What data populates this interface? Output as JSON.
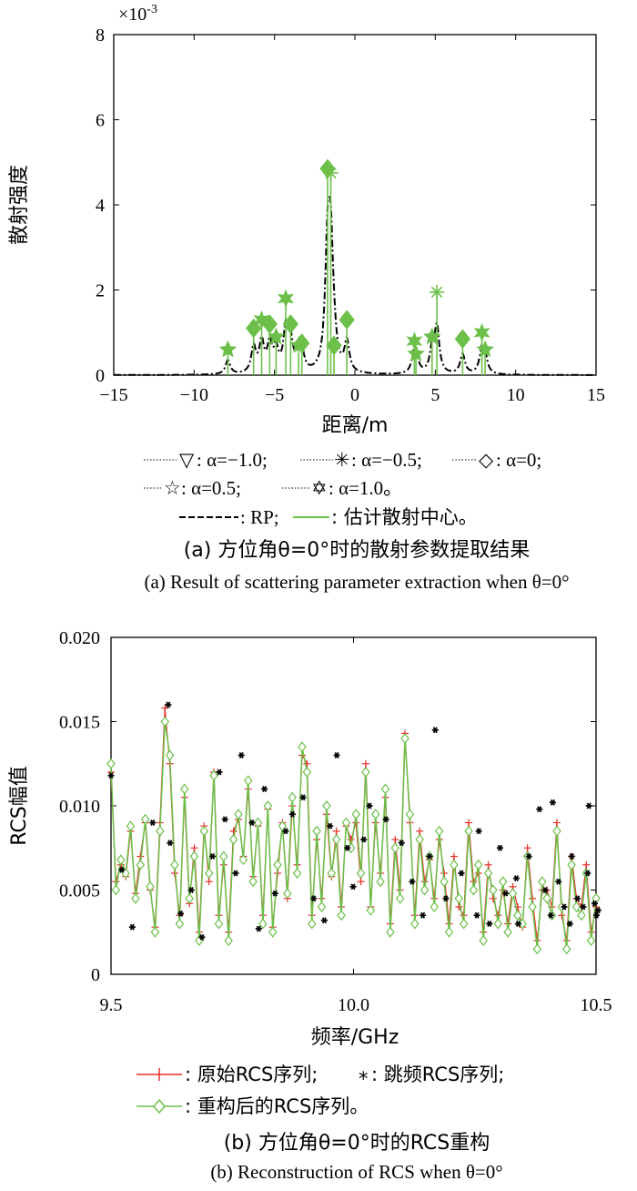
{
  "figure_a": {
    "exponent_label": "×10",
    "exponent_power": "-3",
    "xlabel": "距离/m",
    "ylabel": "散射强度",
    "legend": {
      "row1": [
        {
          "marker": "▽",
          "text": ": α=−1.0;"
        },
        {
          "marker": "✳",
          "text": ": α=−0.5;"
        },
        {
          "marker": "◇",
          "text": ": α=0;"
        }
      ],
      "row2": [
        {
          "marker": "☆",
          "text": ": α=0.5;"
        },
        {
          "marker": "✡",
          "text": ": α=1.0。"
        }
      ],
      "row3": [
        {
          "text": ": RP;"
        },
        {
          "text": ": 估计散射中心。"
        }
      ]
    },
    "caption_cn": "(a) 方位角θ=0°时的散射参数提取结果",
    "caption_en": "(a) Result of scattering parameter extraction when θ=0°"
  },
  "figure_b": {
    "xlabel": "频率/GHz",
    "ylabel": "RCS幅值",
    "legend": {
      "row1": [
        {
          "text": ": 原始RCS序列;"
        },
        {
          "marker": "*",
          "text": ": 跳频RCS序列;"
        }
      ],
      "row2": [
        {
          "text": ": 重构后的RCS序列。"
        }
      ]
    },
    "caption_cn": "(b) 方位角θ=0°时的RCS重构",
    "caption_en": "(b) Reconstruction of RCS when θ=0°"
  },
  "colors": {
    "rp": "#000000",
    "scatter": "#6cc04a",
    "original": "#e8302a",
    "hop": "#000000",
    "recon": "#6cc04a"
  },
  "chart_data": [
    {
      "type": "line",
      "xlabel": "距离/m",
      "ylabel": "散射强度",
      "y_scale_note": "×10^-3",
      "xlim": [
        -15,
        15
      ],
      "ylim": [
        0,
        8
      ],
      "xticks": [
        -15,
        -10,
        -5,
        0,
        5,
        10,
        15
      ],
      "yticks": [
        0,
        2,
        4,
        6,
        8
      ],
      "series": [
        {
          "name": "RP",
          "style": "dashdot"
        },
        {
          "name": "估计散射中心",
          "style": "stem"
        }
      ],
      "scatter_centers": [
        {
          "x": -7.9,
          "y": 0.6,
          "marker": "star"
        },
        {
          "x": -6.3,
          "y": 1.1,
          "marker": "diamond"
        },
        {
          "x": -5.8,
          "y": 1.3,
          "marker": "star6"
        },
        {
          "x": -5.3,
          "y": 1.2,
          "marker": "diamond"
        },
        {
          "x": -4.9,
          "y": 0.9,
          "marker": "star"
        },
        {
          "x": -4.3,
          "y": 1.8,
          "marker": "star6"
        },
        {
          "x": -4.0,
          "y": 1.2,
          "marker": "diamond"
        },
        {
          "x": -3.5,
          "y": 0.7,
          "marker": "star"
        },
        {
          "x": -3.3,
          "y": 0.75,
          "marker": "diamond"
        },
        {
          "x": -1.7,
          "y": 4.85,
          "marker": "diamond"
        },
        {
          "x": -1.5,
          "y": 4.75,
          "marker": "asterisk"
        },
        {
          "x": -1.3,
          "y": 0.7,
          "marker": "diamond"
        },
        {
          "x": -0.5,
          "y": 1.3,
          "marker": "diamond"
        },
        {
          "x": 3.7,
          "y": 0.8,
          "marker": "star6"
        },
        {
          "x": 3.8,
          "y": 0.5,
          "marker": "star"
        },
        {
          "x": 4.8,
          "y": 0.9,
          "marker": "star"
        },
        {
          "x": 5.1,
          "y": 1.95,
          "marker": "asterisk"
        },
        {
          "x": 6.7,
          "y": 0.85,
          "marker": "diamond"
        },
        {
          "x": 7.9,
          "y": 1.0,
          "marker": "star6"
        },
        {
          "x": 8.1,
          "y": 0.6,
          "marker": "star"
        }
      ]
    },
    {
      "type": "line",
      "xlabel": "频率/GHz",
      "ylabel": "RCS幅值",
      "xlim": [
        9.5,
        10.5
      ],
      "ylim": [
        0,
        0.02
      ],
      "xticks": [
        9.5,
        10.0,
        10.5
      ],
      "yticks": [
        0,
        0.005,
        0.01,
        0.015,
        0.02
      ],
      "series": [
        {
          "name": "原始RCS序列",
          "style": "red line with + markers"
        },
        {
          "name": "跳频RCS序列",
          "style": "black * markers"
        },
        {
          "name": "重构后的RCS序列",
          "style": "green line with diamond markers"
        }
      ],
      "x_points": 100,
      "recon_values": [
        0.0125,
        0.005,
        0.0068,
        0.006,
        0.0088,
        0.0045,
        0.0065,
        0.0092,
        0.0052,
        0.0025,
        0.0085,
        0.015,
        0.013,
        0.0065,
        0.003,
        0.011,
        0.0045,
        0.007,
        0.002,
        0.0085,
        0.006,
        0.0118,
        0.003,
        0.007,
        0.002,
        0.008,
        0.0095,
        0.0068,
        0.0115,
        0.0055,
        0.009,
        0.003,
        0.01,
        0.0025,
        0.0065,
        0.0088,
        0.0048,
        0.0105,
        0.006,
        0.0135,
        0.012,
        0.003,
        0.0085,
        0.004,
        0.01,
        0.006,
        0.008,
        0.0035,
        0.009,
        0.0075,
        0.0095,
        0.006,
        0.012,
        0.0038,
        0.0095,
        0.0055,
        0.011,
        0.0025,
        0.0075,
        0.0045,
        0.014,
        0.0095,
        0.003,
        0.008,
        0.005,
        0.007,
        0.004,
        0.0085,
        0.0055,
        0.0025,
        0.0065,
        0.0045,
        0.003,
        0.0085,
        0.005,
        0.0065,
        0.002,
        0.006,
        0.005,
        0.003,
        0.0055,
        0.0025,
        0.0048,
        0.0035,
        0.003,
        0.007,
        0.004,
        0.0015,
        0.0055,
        0.0045,
        0.0035,
        0.0085,
        0.004,
        0.0015,
        0.0065,
        0.004,
        0.0035,
        0.006,
        0.002,
        0.0045
      ],
      "orig_values": [
        0.012,
        0.0055,
        0.0065,
        0.0058,
        0.0085,
        0.0048,
        0.007,
        0.009,
        0.005,
        0.0028,
        0.009,
        0.0158,
        0.0125,
        0.006,
        0.0035,
        0.0105,
        0.0042,
        0.0075,
        0.0025,
        0.0088,
        0.0055,
        0.012,
        0.0035,
        0.0065,
        0.0025,
        0.0085,
        0.0092,
        0.007,
        0.011,
        0.0058,
        0.0088,
        0.0035,
        0.0098,
        0.0028,
        0.006,
        0.009,
        0.0045,
        0.01,
        0.0065,
        0.013,
        0.0125,
        0.0035,
        0.008,
        0.0045,
        0.0095,
        0.0058,
        0.0085,
        0.004,
        0.0088,
        0.008,
        0.009,
        0.0055,
        0.0125,
        0.004,
        0.009,
        0.006,
        0.0105,
        0.003,
        0.008,
        0.005,
        0.0143,
        0.009,
        0.0035,
        0.0085,
        0.0055,
        0.0068,
        0.0045,
        0.008,
        0.006,
        0.003,
        0.007,
        0.004,
        0.0035,
        0.009,
        0.0055,
        0.006,
        0.0025,
        0.0065,
        0.0045,
        0.0035,
        0.005,
        0.003,
        0.0052,
        0.004,
        0.0028,
        0.0075,
        0.0045,
        0.002,
        0.005,
        0.005,
        0.004,
        0.009,
        0.0035,
        0.002,
        0.007,
        0.0045,
        0.004,
        0.0065,
        0.0025,
        0.004
      ],
      "hop_values": [
        0.0118,
        0.0062,
        0.0028,
        0.009,
        0.016,
        0.0078,
        0.0036,
        0.005,
        0.0022,
        0.007,
        0.012,
        0.0092,
        0.006,
        0.013,
        0.009,
        0.0027,
        0.011,
        0.0048,
        0.0085,
        0.0095,
        0.0105,
        0.0045,
        0.0032,
        0.0088,
        0.013,
        0.0075,
        0.0052,
        0.008,
        0.01,
        0.0092,
        0.0078,
        0.0055,
        0.0035,
        0.007,
        0.0145,
        0.0045,
        0.006,
        0.0035,
        0.0085,
        0.003,
        0.0075,
        0.0048,
        0.0057,
        0.003,
        0.007,
        0.0098,
        0.005,
        0.0035,
        0.0102,
        0.0055,
        0.004,
        0.003,
        0.007,
        0.0045,
        0.004,
        0.01,
        0.0042,
        0.0035,
        0.006,
        0.0038
      ],
      "hop_x_indices": [
        0,
        2,
        4,
        8,
        11,
        12,
        14,
        16,
        18,
        20,
        22,
        23,
        25,
        26,
        28,
        30,
        31,
        33,
        35,
        37,
        39,
        41,
        43,
        44,
        46,
        48,
        49,
        51,
        52,
        56,
        59,
        61,
        63,
        65,
        66,
        68,
        71,
        74,
        75,
        77,
        79,
        80,
        82,
        83,
        85,
        87,
        88,
        89,
        90,
        91,
        92,
        93,
        94,
        95,
        96,
        97,
        98,
        99,
        97,
        99
      ]
    }
  ]
}
